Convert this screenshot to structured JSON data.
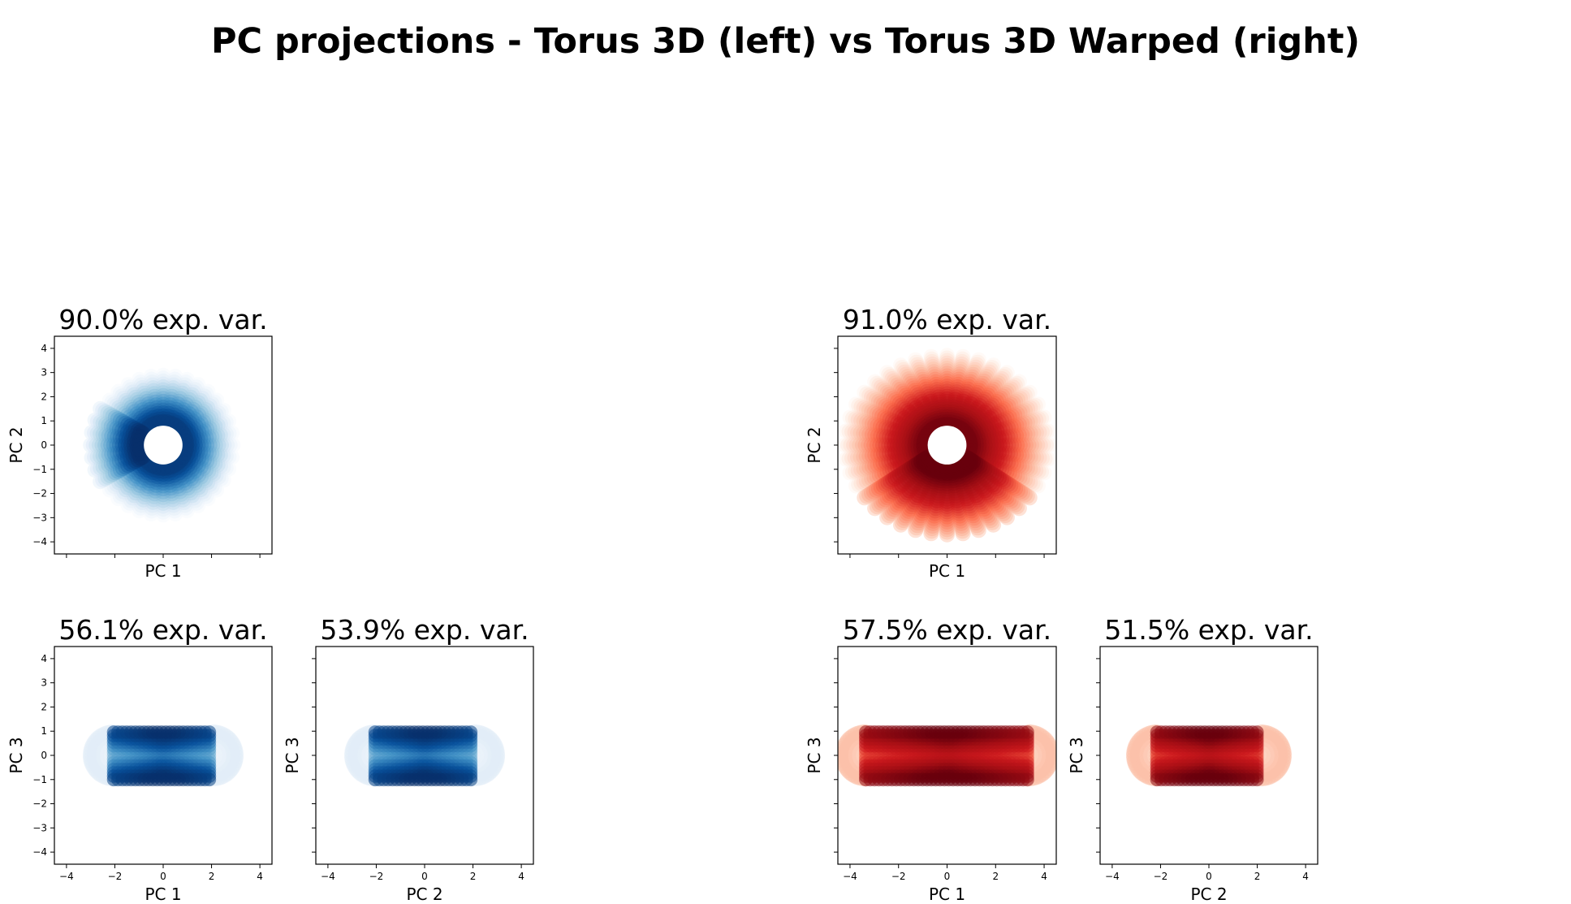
{
  "title": "PC projections - Torus 3D (left) vs Torus 3D Warped (right)",
  "colors": {
    "blue_map": [
      "#ffffff",
      "#deebf7",
      "#9ecae1",
      "#4292c6",
      "#08519c",
      "#08306b"
    ],
    "red_map": [
      "#fff5f0",
      "#fcbba1",
      "#fb6a4a",
      "#cb181d",
      "#a50f15",
      "#67000d"
    ]
  },
  "chart_data": [
    {
      "id": "left-pc1-pc2",
      "type": "scatter",
      "colormap": "blue",
      "shape": "ring",
      "title": "90.0% exp. var.",
      "xlabel": "PC 1",
      "ylabel": "PC 2",
      "xlim": [
        -4.5,
        4.5
      ],
      "ylim": [
        -4.5,
        4.5
      ],
      "xticks": [],
      "yticks": [
        -4,
        -3,
        -2,
        -1,
        0,
        1,
        2,
        3,
        4
      ],
      "torus": {
        "major_radius": 2.0,
        "minor_radius": 1.0,
        "outer_radius": 3.0,
        "inner_radius": 0.8,
        "spokes": 36
      }
    },
    {
      "id": "left-pc1-pc3",
      "type": "scatter",
      "colormap": "blue",
      "shape": "band",
      "title": "56.1% exp. var.",
      "xlabel": "PC 1",
      "ylabel": "PC 3",
      "xlim": [
        -4.5,
        4.5
      ],
      "ylim": [
        -4.5,
        4.5
      ],
      "xticks": [
        -4,
        -2,
        0,
        2,
        4
      ],
      "yticks": [
        -4,
        -3,
        -2,
        -1,
        0,
        1,
        2,
        3,
        4
      ],
      "torus": {
        "x_extent": [
          -3.1,
          3.1
        ],
        "y_extent": [
          -1.1,
          1.1
        ]
      }
    },
    {
      "id": "left-pc2-pc3",
      "type": "scatter",
      "colormap": "blue",
      "shape": "band",
      "title": "53.9% exp. var.",
      "xlabel": "PC 2",
      "ylabel": "PC 3",
      "xlim": [
        -4.5,
        4.5
      ],
      "ylim": [
        -4.5,
        4.5
      ],
      "xticks": [
        -4,
        -2,
        0,
        2,
        4
      ],
      "yticks": [],
      "torus": {
        "x_extent": [
          -3.1,
          3.1
        ],
        "y_extent": [
          -1.1,
          1.1
        ]
      }
    },
    {
      "id": "right-pc1-pc2",
      "type": "scatter",
      "colormap": "red",
      "shape": "ring",
      "title": "91.0% exp. var.",
      "xlabel": "PC 1",
      "ylabel": "PC 2",
      "xlim": [
        -4.5,
        4.5
      ],
      "ylim": [
        -4.5,
        4.5
      ],
      "xticks": [],
      "yticks": [],
      "torus": {
        "major_radius": 2.4,
        "minor_radius": 1.1,
        "outer_radius": 4.2,
        "inner_radius": 0.8,
        "spokes": 40
      }
    },
    {
      "id": "right-pc1-pc3",
      "type": "scatter",
      "colormap": "red",
      "shape": "band",
      "title": "57.5% exp. var.",
      "xlabel": "PC 1",
      "ylabel": "PC 3",
      "xlim": [
        -4.5,
        4.5
      ],
      "ylim": [
        -4.5,
        4.5
      ],
      "xticks": [
        -4,
        -2,
        0,
        2,
        4
      ],
      "yticks": [],
      "torus": {
        "x_extent": [
          -4.4,
          4.4
        ],
        "y_extent": [
          -1.1,
          1.1
        ]
      }
    },
    {
      "id": "right-pc2-pc3",
      "type": "scatter",
      "colormap": "red",
      "shape": "band",
      "title": "51.5% exp. var.",
      "xlabel": "PC 2",
      "ylabel": "PC 3",
      "xlim": [
        -4.5,
        4.5
      ],
      "ylim": [
        -4.5,
        4.5
      ],
      "xticks": [
        -4,
        -2,
        0,
        2,
        4
      ],
      "yticks": [],
      "torus": {
        "x_extent": [
          -3.2,
          3.2
        ],
        "y_extent": [
          -1.1,
          1.1
        ]
      }
    }
  ]
}
